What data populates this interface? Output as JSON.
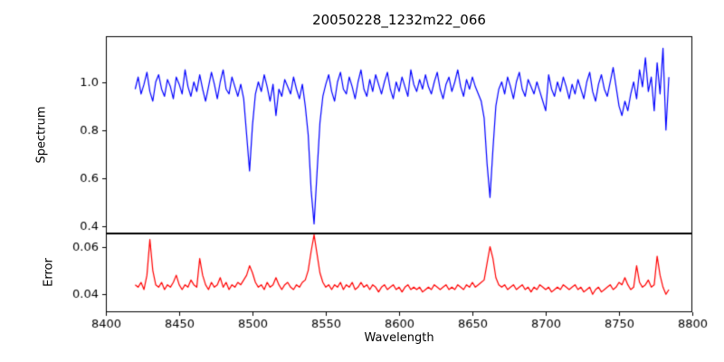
{
  "figure": {
    "background": "#ffffff",
    "frame_color": "#000000"
  },
  "chart_data": {
    "type": "line",
    "title": "20050228_1232m22_066",
    "xlabel": "Wavelength",
    "legend": "none",
    "grid": false,
    "xlim": [
      8400,
      8800
    ],
    "x_ticks": [
      8400,
      8450,
      8500,
      8550,
      8600,
      8650,
      8700,
      8750,
      8800
    ],
    "x_start": 8420,
    "x_step": 2,
    "subplots": [
      {
        "name": "spectrum",
        "ylabel": "Spectrum",
        "color": "#0000ff",
        "ylim": [
          0.37,
          1.19
        ],
        "y_ticks": [
          0.4,
          0.6,
          0.8,
          1.0
        ],
        "y_tick_labels": [
          "0.4",
          "0.6",
          "0.8",
          "1.0"
        ],
        "absorption_lines_x": [
          8498,
          8542,
          8662
        ],
        "values": [
          0.97,
          1.02,
          0.95,
          0.99,
          1.04,
          0.96,
          0.92,
          1.0,
          1.03,
          0.97,
          0.94,
          1.01,
          0.98,
          0.93,
          1.02,
          0.99,
          0.95,
          1.05,
          0.98,
          0.94,
          1.0,
          0.96,
          1.03,
          0.97,
          0.92,
          0.98,
          1.04,
          0.99,
          0.93,
          1.0,
          1.05,
          0.97,
          0.95,
          1.02,
          0.98,
          0.94,
          0.99,
          0.93,
          0.78,
          0.63,
          0.82,
          0.95,
          1.0,
          0.96,
          1.03,
          0.98,
          0.92,
          0.99,
          0.86,
          0.97,
          0.94,
          1.01,
          0.98,
          0.95,
          1.02,
          0.97,
          0.93,
          0.99,
          0.9,
          0.78,
          0.55,
          0.41,
          0.62,
          0.83,
          0.94,
          0.99,
          1.03,
          0.96,
          0.92,
          1.0,
          1.04,
          0.97,
          0.95,
          1.02,
          0.98,
          0.93,
          1.0,
          1.05,
          0.97,
          0.94,
          1.01,
          0.96,
          1.03,
          0.99,
          0.95,
          1.0,
          1.04,
          0.97,
          0.93,
          1.0,
          0.96,
          1.02,
          0.98,
          0.94,
          1.05,
          0.99,
          0.96,
          1.01,
          0.97,
          1.03,
          0.98,
          0.95,
          1.0,
          1.04,
          0.97,
          0.93,
          0.99,
          1.02,
          0.96,
          1.0,
          1.05,
          0.98,
          0.94,
          1.01,
          0.97,
          1.02,
          0.98,
          0.95,
          0.92,
          0.85,
          0.66,
          0.52,
          0.72,
          0.9,
          0.97,
          1.0,
          0.95,
          1.02,
          0.98,
          0.93,
          1.0,
          1.04,
          0.97,
          0.94,
          1.01,
          0.98,
          0.95,
          1.0,
          0.96,
          0.92,
          0.88,
          1.03,
          0.97,
          0.94,
          1.0,
          0.96,
          1.02,
          0.98,
          0.93,
          0.99,
          0.95,
          1.01,
          0.97,
          0.93,
          1.0,
          1.04,
          0.96,
          0.92,
          0.99,
          1.03,
          0.97,
          0.94,
          1.0,
          1.06,
          0.98,
          0.9,
          0.86,
          0.92,
          0.88,
          0.95,
          1.0,
          0.93,
          1.05,
          0.98,
          1.1,
          0.96,
          1.02,
          0.88,
          1.08,
          0.95,
          1.14,
          0.8,
          1.02
        ]
      },
      {
        "name": "error",
        "ylabel": "Error",
        "color": "#ff0000",
        "ylim": [
          0.0325,
          0.0655
        ],
        "y_ticks": [
          0.04,
          0.06
        ],
        "y_tick_labels": [
          "0.04",
          "0.06"
        ],
        "values": [
          0.044,
          0.043,
          0.045,
          0.042,
          0.048,
          0.063,
          0.05,
          0.044,
          0.043,
          0.045,
          0.042,
          0.044,
          0.043,
          0.045,
          0.048,
          0.044,
          0.042,
          0.044,
          0.043,
          0.046,
          0.044,
          0.043,
          0.055,
          0.048,
          0.044,
          0.042,
          0.045,
          0.043,
          0.044,
          0.047,
          0.043,
          0.045,
          0.042,
          0.044,
          0.043,
          0.045,
          0.044,
          0.046,
          0.048,
          0.052,
          0.049,
          0.045,
          0.043,
          0.044,
          0.042,
          0.045,
          0.043,
          0.044,
          0.047,
          0.044,
          0.042,
          0.044,
          0.045,
          0.043,
          0.042,
          0.044,
          0.043,
          0.045,
          0.046,
          0.05,
          0.058,
          0.065,
          0.057,
          0.049,
          0.045,
          0.043,
          0.044,
          0.042,
          0.044,
          0.043,
          0.045,
          0.042,
          0.044,
          0.043,
          0.045,
          0.042,
          0.043,
          0.045,
          0.043,
          0.044,
          0.042,
          0.044,
          0.043,
          0.041,
          0.043,
          0.044,
          0.042,
          0.043,
          0.044,
          0.042,
          0.043,
          0.041,
          0.043,
          0.044,
          0.042,
          0.043,
          0.042,
          0.043,
          0.041,
          0.042,
          0.043,
          0.042,
          0.044,
          0.043,
          0.042,
          0.043,
          0.044,
          0.042,
          0.043,
          0.042,
          0.044,
          0.043,
          0.042,
          0.044,
          0.043,
          0.045,
          0.043,
          0.044,
          0.045,
          0.046,
          0.053,
          0.06,
          0.055,
          0.047,
          0.044,
          0.043,
          0.044,
          0.042,
          0.043,
          0.044,
          0.042,
          0.043,
          0.044,
          0.042,
          0.043,
          0.041,
          0.043,
          0.042,
          0.044,
          0.043,
          0.042,
          0.043,
          0.041,
          0.042,
          0.043,
          0.042,
          0.044,
          0.043,
          0.042,
          0.043,
          0.044,
          0.042,
          0.043,
          0.041,
          0.042,
          0.043,
          0.04,
          0.042,
          0.043,
          0.041,
          0.042,
          0.043,
          0.044,
          0.042,
          0.043,
          0.045,
          0.044,
          0.047,
          0.044,
          0.042,
          0.043,
          0.052,
          0.045,
          0.043,
          0.044,
          0.046,
          0.043,
          0.044,
          0.056,
          0.048,
          0.043,
          0.04,
          0.042
        ]
      }
    ]
  }
}
